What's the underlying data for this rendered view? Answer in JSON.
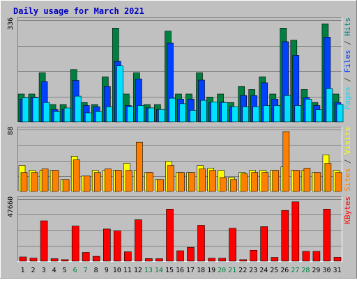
{
  "chart_data": {
    "type": "bar",
    "title": "Daily usage for March 2021",
    "categories": [
      "1",
      "2",
      "3",
      "4",
      "5",
      "6",
      "7",
      "8",
      "9",
      "10",
      "11",
      "12",
      "13",
      "14",
      "15",
      "16",
      "17",
      "18",
      "19",
      "20",
      "21",
      "22",
      "23",
      "24",
      "25",
      "26",
      "27",
      "28",
      "29",
      "30",
      "31"
    ],
    "weekend_days": [
      "6",
      "7",
      "13",
      "14",
      "20",
      "21",
      "27",
      "28"
    ],
    "panels": [
      {
        "name": "hits-files-pages",
        "y_max_label": "336",
        "ylim": [
          0,
          336
        ],
        "legend": [
          "Pages",
          " / ",
          "Files",
          " / ",
          "Hits"
        ],
        "legend_colors": [
          "#00e0ff",
          "#444444",
          "#0040ff",
          "#444444",
          "#008080"
        ],
        "series": [
          {
            "name": "Hits",
            "color": "#008040",
            "values": [
              92,
              92,
              162,
              57,
              57,
              173,
              64,
              57,
              149,
              310,
              92,
              162,
              57,
              57,
              300,
              92,
              92,
              162,
              82,
              92,
              64,
              117,
              107,
              149,
              92,
              310,
              270,
              107,
              64,
              324,
              92
            ]
          },
          {
            "name": "Files",
            "color": "#0040ff",
            "values": [
              75,
              82,
              133,
              41,
              41,
              137,
              54,
              50,
              117,
              200,
              54,
              142,
              46,
              41,
              260,
              75,
              75,
              138,
              64,
              65,
              50,
              87,
              87,
              129,
              75,
              265,
              220,
              80,
              54,
              280,
              64
            ]
          },
          {
            "name": "Pages",
            "color": "#00e0ff",
            "values": [
              80,
              80,
              64,
              34,
              46,
              85,
              30,
              34,
              50,
              185,
              50,
              54,
              46,
              41,
              78,
              60,
              38,
              71,
              66,
              64,
              50,
              50,
              50,
              54,
              54,
              87,
              54,
              75,
              40,
              110,
              58
            ]
          }
        ]
      },
      {
        "name": "visits-sites",
        "y_max_label": "88",
        "ylim": [
          0,
          88
        ],
        "legend": [
          "Sites",
          " / ",
          "Visits"
        ],
        "legend_colors": [
          "#ff8000",
          "#444444",
          "#ffff00"
        ],
        "series": [
          {
            "name": "Visits",
            "color": "#ffff00",
            "values": [
              37,
              30,
              30,
              30,
              17,
              50,
              22,
              30,
              30,
              30,
              40,
              30,
              27,
              17,
              43,
              27,
              27,
              37,
              33,
              30,
              20,
              27,
              30,
              30,
              30,
              35,
              30,
              30,
              27,
              52,
              30
            ]
          },
          {
            "name": "Sites",
            "color": "#ff8000",
            "values": [
              27,
              27,
              32,
              30,
              17,
              45,
              22,
              27,
              32,
              30,
              30,
              70,
              27,
              17,
              37,
              27,
              27,
              32,
              30,
              20,
              17,
              25,
              27,
              27,
              30,
              85,
              30,
              33,
              27,
              40,
              27
            ]
          }
        ]
      },
      {
        "name": "kbytes",
        "y_max_label": "47660",
        "ylim": [
          0,
          47660
        ],
        "legend": [
          "KBytes"
        ],
        "legend_colors": [
          "#ff0000"
        ],
        "series": [
          {
            "name": "KBytes",
            "color": "#ff0000",
            "values": [
              3200,
              2300,
              31000,
              1900,
              1100,
              27000,
              6700,
              3700,
              24700,
              23300,
              7200,
              31800,
              2000,
              1900,
              40000,
              8000,
              10600,
              27600,
              2200,
              2200,
              25300,
              1100,
              8400,
              26500,
              2900,
              39000,
              45600,
              7500,
              7500,
              40000,
              3000
            ]
          }
        ]
      }
    ]
  }
}
